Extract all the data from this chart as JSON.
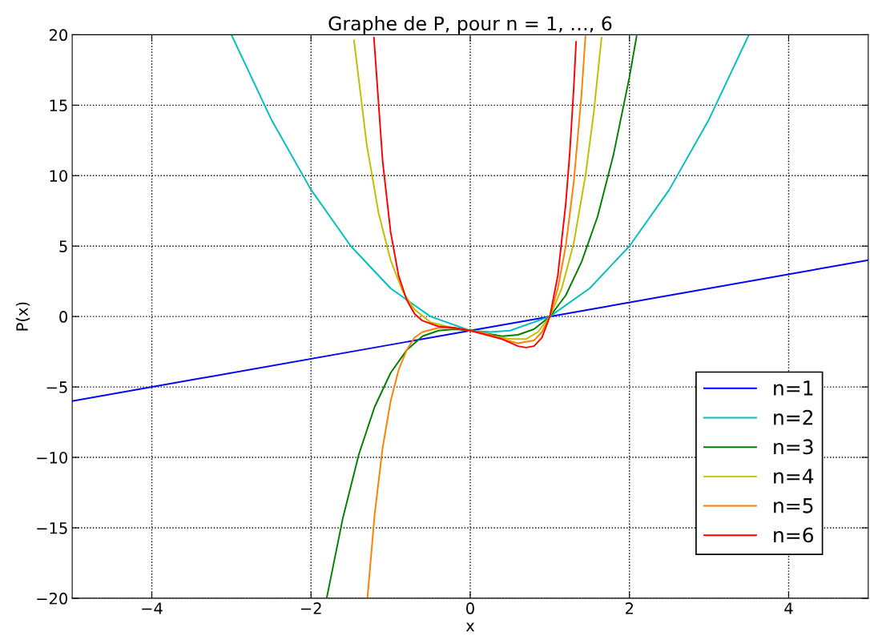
{
  "chart_data": {
    "type": "line",
    "title": "Graphe de P, pour n = 1, …, 6",
    "xlabel": "x",
    "ylabel": "P(x)",
    "xlim": [
      -5,
      5
    ],
    "ylim": [
      -20,
      20
    ],
    "xticks": [
      {
        "value": -4,
        "label": "−4"
      },
      {
        "value": -2,
        "label": "−2"
      },
      0,
      2,
      4
    ],
    "yticks": [
      {
        "value": -20,
        "label": "−20"
      },
      {
        "value": -15,
        "label": "−15"
      },
      {
        "value": -10,
        "label": "−10"
      },
      {
        "value": -5,
        "label": "−5"
      },
      0,
      5,
      10,
      15,
      20
    ],
    "grid": true,
    "legend": "bottom right",
    "line_style": "solid",
    "marker": "none",
    "series": [
      {
        "name": "n=1",
        "color": "#0000ff",
        "x": [
          -5,
          0,
          5
        ],
        "values": [
          -6,
          -1,
          4
        ]
      },
      {
        "name": "n=2",
        "color": "#00bfbf",
        "x": [
          -3,
          -2.5,
          -2,
          -1.5,
          -1,
          -0.5,
          0,
          0.25,
          0.5,
          1,
          1.5,
          2,
          2.5,
          3,
          3.5
        ],
        "values": [
          20,
          14,
          9,
          5,
          2,
          0,
          -1,
          -1.1,
          -1,
          0,
          2,
          5,
          9,
          14,
          20
        ]
      },
      {
        "name": "n=3",
        "color": "#008000",
        "x": [
          -1.8,
          -1.6,
          -1.4,
          -1.2,
          -1.0,
          -0.8,
          -0.6,
          -0.4,
          -0.2,
          0,
          0.2,
          0.4,
          0.6,
          0.8,
          1.0,
          1.2,
          1.4,
          1.6,
          1.8,
          2.0,
          2.09
        ],
        "values": [
          -19.9,
          -14.3,
          -9.8,
          -6.4,
          -4,
          -2.4,
          -1.4,
          -1.0,
          -0.9,
          -1,
          -1.2,
          -1.4,
          -1.3,
          -0.9,
          0,
          1.5,
          3.9,
          7.1,
          11.5,
          17,
          19.9
        ]
      },
      {
        "name": "n=4",
        "color": "#bfbf00",
        "x": [
          -1.46,
          -1.3,
          -1.15,
          -1.0,
          -0.85,
          -0.7,
          -0.5,
          -0.3,
          0,
          0.3,
          0.5,
          0.7,
          0.85,
          1.0,
          1.15,
          1.3,
          1.45,
          1.55,
          1.65
        ],
        "values": [
          19.6,
          12.2,
          7.3,
          4,
          1.8,
          0.5,
          -0.4,
          -0.7,
          -1,
          -1.4,
          -1.6,
          -1.6,
          -1.1,
          0,
          2.0,
          5.2,
          10.1,
          14.4,
          19.8
        ]
      },
      {
        "name": "n=5",
        "color": "#ff7f00",
        "x": [
          -1.29,
          -1.2,
          -1.1,
          -1.0,
          -0.9,
          -0.8,
          -0.7,
          -0.6,
          -0.4,
          -0.2,
          0,
          0.2,
          0.4,
          0.6,
          0.8,
          0.9,
          1.0,
          1.1,
          1.2,
          1.3,
          1.4,
          1.447
        ],
        "values": [
          -19.9,
          -14.0,
          -9.3,
          -6,
          -3.8,
          -2.4,
          -1.5,
          -1.1,
          -0.8,
          -0.8,
          -1,
          -1.2,
          -1.6,
          -1.9,
          -1.7,
          -1.1,
          0,
          2.0,
          5.0,
          9.5,
          15.9,
          19.9
        ]
      },
      {
        "name": "n=6",
        "color": "#ff0000",
        "x": [
          -1.21,
          -1.1,
          -1.0,
          -0.9,
          -0.8,
          -0.7,
          -0.6,
          -0.4,
          -0.2,
          0,
          0.2,
          0.4,
          0.6,
          0.7,
          0.8,
          0.9,
          1.0,
          1.1,
          1.2,
          1.25,
          1.3,
          1.33
        ],
        "values": [
          19.8,
          11.0,
          6,
          2.9,
          1.2,
          0.2,
          -0.3,
          -0.7,
          -0.8,
          -1,
          -1.3,
          -1.6,
          -2.1,
          -2.2,
          -2.1,
          -1.5,
          0,
          2.9,
          8.0,
          11.6,
          16.2,
          19.5
        ]
      }
    ]
  }
}
